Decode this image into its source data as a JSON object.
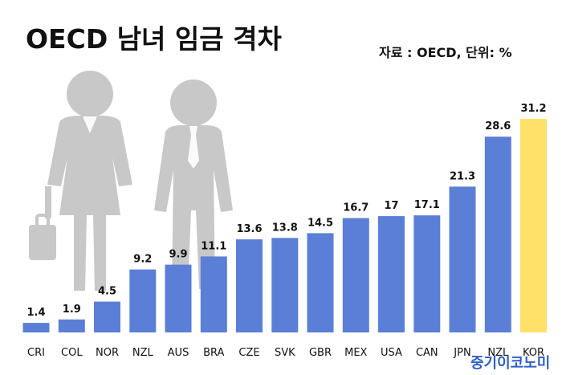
{
  "header": {
    "title": "OECD 남녀 임금 격차",
    "source": "자료 : OECD, 단위: %"
  },
  "brand": {
    "text": "중기이코노미"
  },
  "colors": {
    "bar": "#5b7fd6",
    "highlight": "#ffe169",
    "silhouette": "#c8c8c8",
    "label": "#111111"
  },
  "icons": {
    "background": "people-silhouette-icon"
  },
  "chart_data": {
    "type": "bar",
    "title": "OECD 남녀 임금 격차",
    "categories": [
      "CRI",
      "COL",
      "NOR",
      "NZL",
      "AUS",
      "BRA",
      "CZE",
      "SVK",
      "GBR",
      "MEX",
      "USA",
      "CAN",
      "JPN",
      "NZL",
      "KOR"
    ],
    "values": [
      1.4,
      1.9,
      4.5,
      9.2,
      9.9,
      11.1,
      13.6,
      13.8,
      14.5,
      16.7,
      17,
      17.1,
      21.3,
      28.6,
      31.2
    ],
    "labels": [
      "1.4",
      "1.9",
      "4.5",
      "9.2",
      "9.9",
      "11.1",
      "13.6",
      "13.8",
      "14.5",
      "16.7",
      "17",
      "17.1",
      "21.3",
      "28.6",
      "31.2"
    ],
    "highlight_index": 14,
    "ylim": [
      0,
      31.2
    ],
    "grid": false,
    "legend": "none"
  }
}
